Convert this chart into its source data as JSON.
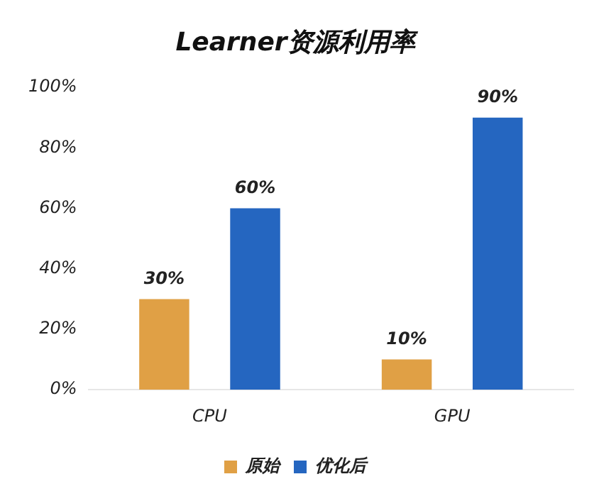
{
  "chart_data": {
    "type": "bar",
    "title": "Learner资源利用率",
    "categories": [
      "CPU",
      "GPU"
    ],
    "series": [
      {
        "name": "原始",
        "color": "#e0a045",
        "values": [
          30,
          10
        ],
        "value_labels": [
          "30%",
          "10%"
        ]
      },
      {
        "name": "优化后",
        "color": "#2566c0",
        "values": [
          60,
          90
        ],
        "value_labels": [
          "60%",
          "90%"
        ]
      }
    ],
    "ylim": [
      0,
      100
    ],
    "yticks": [
      {
        "value": 0,
        "label": "0%"
      },
      {
        "value": 20,
        "label": "20%"
      },
      {
        "value": 40,
        "label": "40%"
      },
      {
        "value": 60,
        "label": "60%"
      },
      {
        "value": 80,
        "label": "80%"
      },
      {
        "value": 100,
        "label": "100%"
      }
    ],
    "grid": false,
    "legend": "bottom"
  }
}
